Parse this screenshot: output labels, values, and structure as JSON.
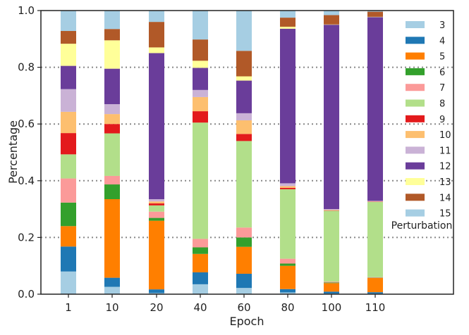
{
  "chart_data": {
    "type": "bar",
    "stacked": true,
    "xlabel": "Epoch",
    "ylabel": "Percentage",
    "ylim": [
      0,
      1.0
    ],
    "yticks": [
      "0.0",
      "0.2",
      "0.4",
      "0.6",
      "0.8",
      "1.0"
    ],
    "ytick_values": [
      0.0,
      0.2,
      0.4,
      0.6,
      0.8,
      1.0
    ],
    "grid": "horizontal dotted at 0.2, 0.4, 0.6, 0.8",
    "categories": [
      "1",
      "10",
      "20",
      "40",
      "60",
      "80",
      "100",
      "110"
    ],
    "legend_title": "Perturbation",
    "legend_position": "right",
    "series": [
      {
        "name": "3",
        "color": "#a6cee3",
        "values": [
          0.08,
          0.026,
          0.004,
          0.035,
          0.022,
          0.006,
          0.002,
          0.002
        ]
      },
      {
        "name": "4",
        "color": "#1f78b4",
        "values": [
          0.088,
          0.032,
          0.013,
          0.042,
          0.05,
          0.012,
          0.007,
          0.005
        ]
      },
      {
        "name": "5",
        "color": "#ff7f00",
        "values": [
          0.072,
          0.277,
          0.242,
          0.065,
          0.095,
          0.082,
          0.03,
          0.05
        ]
      },
      {
        "name": "6",
        "color": "#33a02c",
        "values": [
          0.083,
          0.052,
          0.01,
          0.023,
          0.033,
          0.008,
          0.002,
          0.001
        ]
      },
      {
        "name": "7",
        "color": "#fb9a99",
        "values": [
          0.085,
          0.03,
          0.022,
          0.03,
          0.035,
          0.017,
          0.003,
          0.002
        ]
      },
      {
        "name": "8",
        "color": "#b2df8a",
        "values": [
          0.085,
          0.15,
          0.022,
          0.41,
          0.305,
          0.245,
          0.25,
          0.265
        ]
      },
      {
        "name": "9",
        "color": "#e31a1c",
        "values": [
          0.075,
          0.033,
          0.007,
          0.04,
          0.025,
          0.005,
          0.001,
          0.001
        ]
      },
      {
        "name": "10",
        "color": "#fdbf6f",
        "values": [
          0.075,
          0.035,
          0.007,
          0.05,
          0.048,
          0.006,
          0.002,
          0.001
        ]
      },
      {
        "name": "11",
        "color": "#cab2d6",
        "values": [
          0.08,
          0.035,
          0.008,
          0.025,
          0.025,
          0.01,
          0.003,
          0.002
        ]
      },
      {
        "name": "12",
        "color": "#6a3d9a",
        "values": [
          0.082,
          0.125,
          0.515,
          0.078,
          0.115,
          0.545,
          0.65,
          0.648
        ]
      },
      {
        "name": "13",
        "color": "#ffff99",
        "values": [
          0.078,
          0.1,
          0.02,
          0.025,
          0.015,
          0.007,
          0.001,
          0.001
        ]
      },
      {
        "name": "14",
        "color": "#b15928",
        "values": [
          0.045,
          0.04,
          0.09,
          0.075,
          0.09,
          0.032,
          0.033,
          0.018
        ]
      },
      {
        "name": "15",
        "color": "#a6cee3",
        "values": [
          0.072,
          0.065,
          0.04,
          0.102,
          0.142,
          0.025,
          0.016,
          0.004
        ]
      }
    ]
  }
}
